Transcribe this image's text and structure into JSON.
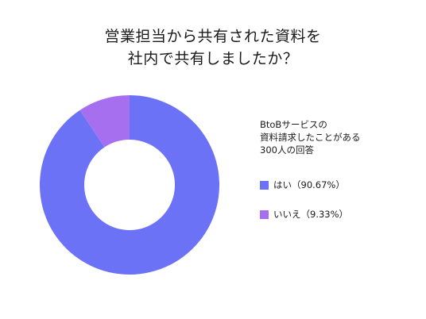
{
  "chart_data": {
    "type": "pie",
    "title_lines": [
      "営業担当から共有された資料を",
      "社内で共有しましたか？"
    ],
    "note_lines": [
      "BtoBサービスの",
      "資料請求したことがある",
      "300人の回答"
    ],
    "slices": [
      {
        "label": "はい",
        "pct_text": "（90.67%）",
        "value": 90.67,
        "color": "#6b72f6"
      },
      {
        "label": "いいえ",
        "pct_text": "（9.33%）",
        "value": 9.33,
        "color": "#a56ff0"
      }
    ],
    "legend_position": "right"
  }
}
